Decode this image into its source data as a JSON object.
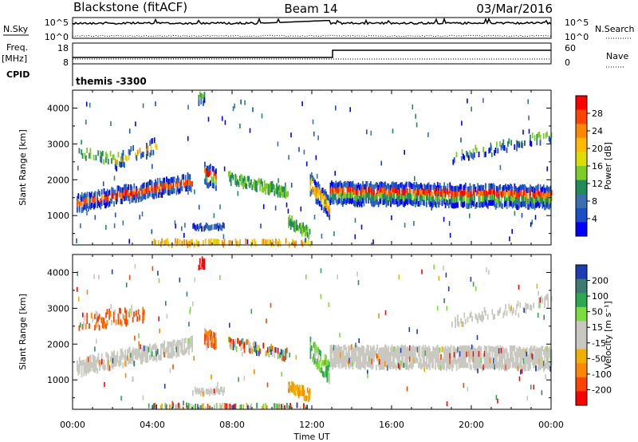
{
  "header": {
    "station": "Blackstone (fitACF)",
    "beam": "Beam 14",
    "date": "03/Mar/2016"
  },
  "noise_panel": {
    "left_label": "N.Sky",
    "left_ticks": [
      "10^5",
      "10^0"
    ],
    "right_label": "N.Search",
    "right_ticks": [
      "10^5",
      "10^0"
    ]
  },
  "freq_panel": {
    "left_label_top": "Freq.",
    "left_label_bottom": "[MHz]",
    "left_ticks": [
      "18",
      "8"
    ],
    "right_label": "Nave",
    "right_ticks": [
      "60",
      "0"
    ],
    "cpid_label": "CPID",
    "cpid_value": "themis -3300"
  },
  "x_axis": {
    "label": "Time UT",
    "ticks": [
      "00:00",
      "04:00",
      "08:00",
      "12:00",
      "16:00",
      "20:00",
      "00:00"
    ]
  },
  "power_colorbar": {
    "label": "Power [dB]",
    "ticks": [
      "28",
      "24",
      "20",
      "16",
      "12",
      "8",
      "4"
    ],
    "colors": [
      "#ff0000",
      "#ff4400",
      "#ff8800",
      "#ffbb00",
      "#dddd00",
      "#7ccc2a",
      "#228b5a",
      "#3a6fb0",
      "#1a4fc8",
      "#0000ff"
    ]
  },
  "velocity_colorbar": {
    "label": "Velocity [m s⁻¹]",
    "ticks": [
      "200",
      "100",
      "50",
      "15",
      "-15",
      "-50",
      "-100",
      "-200"
    ],
    "colors": [
      "#1e3cb4",
      "#3d7a74",
      "#2ea850",
      "#7bdd40",
      "#c8c8c0",
      "#c8c8c0",
      "#f0b000",
      "#ff8800",
      "#ff4400",
      "#ff0000"
    ]
  },
  "chart_data": [
    {
      "type": "heatmap",
      "title": "Power",
      "ylabel": "Slant Range [km]",
      "yticks": [
        "4000",
        "3000",
        "2000",
        "1000"
      ],
      "ylim": [
        180,
        4500
      ],
      "xlim_hours": [
        0,
        24
      ],
      "bands": [
        {
          "t0": 0.2,
          "t1": 6.0,
          "r_start": 1350,
          "r_end": 1950,
          "width": 450,
          "density": 0.8
        },
        {
          "t0": 0.3,
          "t1": 2.5,
          "r_start": 2750,
          "r_end": 2550,
          "width": 300,
          "density": 0.4
        },
        {
          "t0": 2.0,
          "t1": 4.2,
          "r_start": 2500,
          "r_end": 3000,
          "width": 400,
          "density": 0.3
        },
        {
          "t0": 6.6,
          "t1": 7.2,
          "r_start": 2200,
          "r_end": 2100,
          "width": 500,
          "density": 0.7
        },
        {
          "t0": 7.8,
          "t1": 10.8,
          "r_start": 2050,
          "r_end": 1650,
          "width": 300,
          "density": 0.7
        },
        {
          "t0": 6.0,
          "t1": 7.6,
          "r_start": 720,
          "r_end": 720,
          "width": 80,
          "density": 0.9
        },
        {
          "t0": 10.8,
          "t1": 11.9,
          "r_start": 850,
          "r_end": 500,
          "width": 300,
          "density": 0.8
        },
        {
          "t0": 11.9,
          "t1": 12.9,
          "r_start": 1900,
          "r_end": 1200,
          "width": 600,
          "density": 0.8
        },
        {
          "t0": 12.9,
          "t1": 24.0,
          "r_start": 1650,
          "r_end": 1550,
          "width": 550,
          "density": 0.9
        },
        {
          "t0": 19.0,
          "t1": 24.0,
          "r_start": 2650,
          "r_end": 3250,
          "width": 250,
          "density": 0.35
        },
        {
          "t0": 6.3,
          "t1": 6.6,
          "r_start": 4300,
          "r_end": 4300,
          "width": 250,
          "density": 0.9
        },
        {
          "t0": 4.0,
          "t1": 12.0,
          "r_start": 250,
          "r_end": 250,
          "width": 120,
          "density": 0.5
        }
      ]
    },
    {
      "type": "heatmap",
      "title": "Velocity",
      "ylabel": "Slant Range [km]",
      "yticks": [
        "4000",
        "3000",
        "2000",
        "1000"
      ],
      "ylim": [
        180,
        4500
      ],
      "xlim_hours": [
        0,
        24
      ],
      "bands": [
        {
          "t0": 0.2,
          "t1": 6.0,
          "r_start": 1350,
          "r_end": 2000,
          "width": 450,
          "density": 0.7,
          "vel": "ground"
        },
        {
          "t0": 0.3,
          "t1": 3.6,
          "r_start": 2600,
          "r_end": 2900,
          "width": 400,
          "density": 0.4,
          "vel": "neg"
        },
        {
          "t0": 6.6,
          "t1": 7.2,
          "r_start": 2200,
          "r_end": 2100,
          "width": 400,
          "density": 0.7,
          "vel": "neg"
        },
        {
          "t0": 7.8,
          "t1": 10.8,
          "r_start": 2050,
          "r_end": 1700,
          "width": 300,
          "density": 0.6,
          "vel": "mixed"
        },
        {
          "t0": 6.0,
          "t1": 7.6,
          "r_start": 720,
          "r_end": 720,
          "width": 80,
          "density": 0.8,
          "vel": "ground"
        },
        {
          "t0": 10.8,
          "t1": 11.9,
          "r_start": 850,
          "r_end": 550,
          "width": 300,
          "density": 0.8,
          "vel": "mid_neg"
        },
        {
          "t0": 11.9,
          "t1": 12.9,
          "r_start": 1900,
          "r_end": 1200,
          "width": 600,
          "density": 0.7,
          "vel": "pos_low"
        },
        {
          "t0": 12.9,
          "t1": 24.0,
          "r_start": 1650,
          "r_end": 1600,
          "width": 600,
          "density": 0.9,
          "vel": "ground"
        },
        {
          "t0": 19.0,
          "t1": 24.0,
          "r_start": 2650,
          "r_end": 3250,
          "width": 250,
          "density": 0.35,
          "vel": "ground"
        },
        {
          "t0": 6.3,
          "t1": 6.6,
          "r_start": 4300,
          "r_end": 4300,
          "width": 250,
          "density": 0.9,
          "vel": "neg_high"
        },
        {
          "t0": 4.0,
          "t1": 12.0,
          "r_start": 250,
          "r_end": 250,
          "width": 120,
          "density": 0.5,
          "vel": "mixed"
        }
      ]
    }
  ]
}
